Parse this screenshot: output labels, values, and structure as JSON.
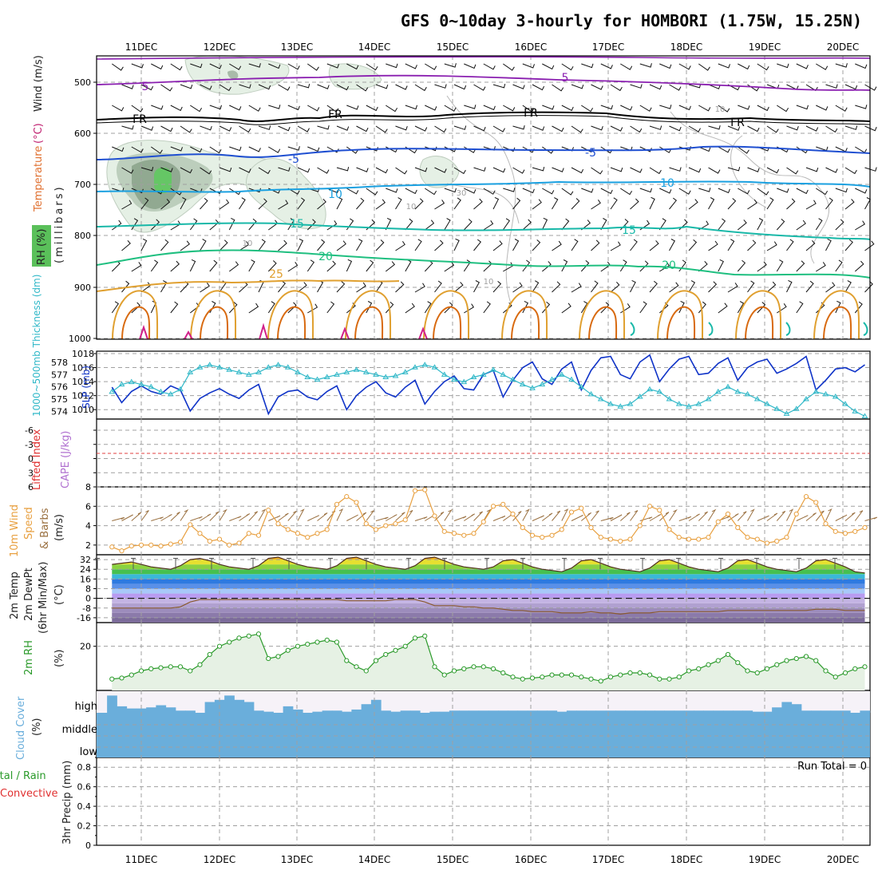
{
  "title": "GFS 0~10day 3-hourly for HOMBORI (1.75W, 15.25N)",
  "dates": [
    "11DEC",
    "12DEC",
    "13DEC",
    "14DEC",
    "15DEC",
    "16DEC",
    "17DEC",
    "18DEC",
    "19DEC",
    "20DEC"
  ],
  "colors": {
    "purple": "#8a1fb0",
    "black": "#000000",
    "blue": "#1f4fd1",
    "lightblue": "#1aa0e0",
    "teal": "#18b8a8",
    "green": "#1fbf80",
    "orange": "#e0a030",
    "darkorange": "#d86a10",
    "magenta": "#d0208a",
    "slp": "#1034c8",
    "thick": "#30b8c8",
    "wind": "#e8a040",
    "barb": "#9a7040",
    "rh": "#2a9a2a",
    "cloud": "#6aaedb"
  },
  "panels": {
    "upper": {
      "y_labels": [
        "Temperature",
        "(°C)",
        "Wind (m/s)"
      ],
      "y_label2": "(millibars)",
      "rh_label": "RH (%)",
      "ticks": [
        "500",
        "600",
        "700",
        "800",
        "900",
        "1000"
      ],
      "contour_labels": [
        {
          "text": "5",
          "color": "purple"
        },
        {
          "text": "5",
          "color": "purple"
        },
        {
          "text": "FR",
          "color": "black"
        },
        {
          "text": "FR",
          "color": "black"
        },
        {
          "text": "FR",
          "color": "black"
        },
        {
          "text": "FR",
          "color": "black"
        },
        {
          "text": "-5",
          "color": "blue"
        },
        {
          "text": "-5",
          "color": "blue"
        },
        {
          "text": "10",
          "color": "lightblue"
        },
        {
          "text": "10",
          "color": "lightblue"
        },
        {
          "text": "15",
          "color": "teal"
        },
        {
          "text": "15",
          "color": "teal"
        },
        {
          "text": "20",
          "color": "green"
        },
        {
          "text": "20",
          "color": "green"
        },
        {
          "text": "25",
          "color": "orange"
        },
        {
          "text": "30",
          "color": "gray"
        },
        {
          "text": "10",
          "color": "gray"
        },
        {
          "text": "10",
          "color": "gray"
        },
        {
          "text": "10",
          "color": "gray"
        },
        {
          "text": "10",
          "color": "gray"
        }
      ]
    },
    "slp": {
      "left_label": "1000~500mb Thickness (dm)",
      "right_label": "SLP (mb)",
      "left_ticks": [
        "578",
        "577",
        "576",
        "575",
        "574"
      ],
      "right_ticks": [
        "1018",
        "1016",
        "1014",
        "1012",
        "1010"
      ]
    },
    "stability": {
      "labels": [
        "Lifted Index",
        "CAPE (J/kg)"
      ],
      "ticks": [
        "-6",
        "-3",
        "0",
        "3",
        "6"
      ]
    },
    "wind10": {
      "labels": [
        "10m Wind",
        "Speed",
        "& Barbs",
        "(m/s)"
      ],
      "ticks": [
        "8",
        "6",
        "4",
        "2"
      ]
    },
    "temp2m": {
      "labels": [
        "2m Temp",
        "2m DewPt",
        "(6hr Min/Max)",
        "(°C)"
      ],
      "ticks": [
        "32",
        "24",
        "16",
        "8",
        "0",
        "-8",
        "-16"
      ]
    },
    "rh2m": {
      "labels": [
        "2m RH",
        "(%)"
      ],
      "ticks": [
        "20"
      ]
    },
    "cloud": {
      "labels": [
        "Cloud Cover",
        "(%)"
      ],
      "levels": [
        "high",
        "middle",
        "low"
      ]
    },
    "precip": {
      "labels": [
        "Total / Rain",
        "Convective",
        "3hr Precip (mm)"
      ],
      "ticks": [
        "0.8",
        "0.6",
        "0.4",
        "0.2",
        "0"
      ],
      "run_total": "Run Total = 0"
    }
  },
  "chart_data": [
    {
      "type": "line",
      "name": "SLP",
      "ylabel": "SLP (mb)",
      "ylim": [
        1009,
        1018
      ],
      "x": [
        "10DEC 15",
        "10DEC 18",
        "10DEC 21",
        "11DEC 00",
        "11DEC 03",
        "11DEC 06",
        "11DEC 09",
        "11DEC 12",
        "11DEC 15",
        "11DEC 18",
        "11DEC 21",
        "12DEC 00",
        "12DEC 03",
        "12DEC 06",
        "12DEC 09",
        "12DEC 12",
        "12DEC 15",
        "12DEC 18",
        "12DEC 21",
        "13DEC 00",
        "13DEC 03",
        "13DEC 06",
        "13DEC 09",
        "13DEC 12",
        "13DEC 15",
        "13DEC 18",
        "13DEC 21",
        "14DEC 00",
        "14DEC 03",
        "14DEC 06",
        "14DEC 09",
        "14DEC 12",
        "14DEC 15",
        "14DEC 18",
        "14DEC 21",
        "15DEC 00",
        "15DEC 03",
        "15DEC 06",
        "15DEC 09",
        "15DEC 12",
        "15DEC 15",
        "15DEC 18",
        "15DEC 21",
        "16DEC 00",
        "16DEC 03",
        "16DEC 06",
        "16DEC 09",
        "16DEC 12",
        "16DEC 15",
        "16DEC 18",
        "16DEC 21",
        "17DEC 00",
        "17DEC 03",
        "17DEC 06",
        "17DEC 09",
        "17DEC 12",
        "17DEC 15",
        "17DEC 18",
        "17DEC 21",
        "18DEC 00",
        "18DEC 03",
        "18DEC 06",
        "18DEC 09",
        "18DEC 12",
        "18DEC 15",
        "18DEC 18",
        "18DEC 21",
        "19DEC 00",
        "19DEC 03",
        "19DEC 06",
        "19DEC 09",
        "19DEC 12",
        "19DEC 15",
        "19DEC 18",
        "19DEC 21",
        "20DEC 00",
        "20DEC 03",
        "20DEC 06"
      ],
      "values": [
        1013.2,
        1011.0,
        1012.6,
        1013.4,
        1012.6,
        1012.2,
        1013.4,
        1012.8,
        1009.8,
        1011.6,
        1012.4,
        1013.0,
        1012.2,
        1011.6,
        1012.8,
        1013.6,
        1009.4,
        1011.8,
        1012.6,
        1012.8,
        1011.8,
        1011.4,
        1012.6,
        1013.4,
        1010.0,
        1012.0,
        1013.2,
        1014.0,
        1012.4,
        1011.8,
        1013.2,
        1014.2,
        1010.8,
        1012.6,
        1014.0,
        1014.8,
        1013.0,
        1012.8,
        1015.0,
        1015.6,
        1011.8,
        1014.2,
        1016.0,
        1016.8,
        1014.4,
        1013.6,
        1015.8,
        1016.8,
        1012.8,
        1015.6,
        1017.4,
        1017.6,
        1015.0,
        1014.4,
        1016.8,
        1017.8,
        1014.0,
        1015.8,
        1017.2,
        1017.6,
        1015.0,
        1015.2,
        1016.6,
        1017.4,
        1014.2,
        1016.0,
        1016.8,
        1017.2,
        1015.2,
        1015.8,
        1016.6,
        1017.6,
        1012.8,
        1014.2,
        1015.8,
        1016.0,
        1015.4,
        1016.4
      ]
    },
    {
      "type": "line",
      "name": "1000~500mb Thickness",
      "ylabel": "Thickness (dm)",
      "ylim": [
        573.5,
        578.4
      ],
      "values": [
        575.6,
        576.2,
        576.4,
        576.2,
        576.0,
        575.6,
        575.4,
        575.8,
        577.2,
        577.6,
        577.8,
        577.6,
        577.4,
        577.2,
        577.0,
        577.2,
        577.6,
        577.8,
        577.6,
        577.2,
        576.8,
        576.6,
        576.8,
        577.0,
        577.2,
        577.4,
        577.2,
        577.0,
        576.8,
        576.9,
        577.2,
        577.6,
        577.8,
        577.6,
        577.0,
        576.6,
        576.4,
        576.8,
        577.0,
        577.4,
        577.0,
        576.6,
        576.2,
        575.9,
        576.2,
        576.6,
        577.0,
        576.6,
        576.0,
        575.4,
        575.0,
        574.6,
        574.4,
        574.6,
        575.2,
        575.8,
        575.6,
        575.0,
        574.6,
        574.4,
        574.6,
        575.0,
        575.6,
        576.0,
        575.6,
        575.4,
        575.0,
        574.6,
        574.2,
        573.8,
        574.2,
        575.0,
        575.6,
        575.4,
        575.2,
        574.6,
        574.0,
        573.6
      ]
    },
    {
      "type": "line",
      "name": "10m Wind Speed",
      "ylabel": "(m/s)",
      "ylim": [
        1,
        8
      ],
      "values": [
        1.8,
        1.4,
        1.9,
        2.0,
        2.0,
        1.9,
        2.1,
        2.3,
        4.1,
        3.2,
        2.4,
        2.6,
        2.0,
        2.2,
        3.2,
        3.0,
        5.6,
        4.2,
        3.6,
        3.2,
        2.8,
        3.2,
        3.6,
        6.2,
        7.0,
        6.4,
        4.2,
        3.6,
        4.0,
        4.2,
        4.6,
        7.6,
        7.7,
        5.0,
        3.4,
        3.2,
        3.0,
        3.2,
        4.4,
        6.0,
        6.2,
        5.2,
        3.8,
        3.0,
        2.8,
        3.0,
        3.6,
        5.4,
        5.8,
        3.8,
        2.8,
        2.6,
        2.4,
        2.6,
        4.0,
        6.0,
        5.6,
        3.6,
        2.8,
        2.6,
        2.6,
        2.8,
        4.4,
        5.2,
        3.8,
        2.8,
        2.6,
        2.2,
        2.4,
        2.8,
        5.2,
        7.0,
        6.4,
        4.2,
        3.4,
        3.2,
        3.4,
        3.8
      ]
    },
    {
      "type": "area",
      "name": "2m Temp",
      "ylabel": "(°C)",
      "ylim": [
        -20,
        36
      ],
      "values": [
        28,
        29,
        30,
        28,
        26,
        25,
        24,
        27,
        32,
        33,
        31,
        28,
        26,
        25,
        24,
        27,
        33,
        34,
        31,
        28,
        26,
        25,
        24,
        27,
        33,
        34,
        31,
        28,
        26,
        25,
        24,
        27,
        33,
        34,
        31,
        28,
        26,
        25,
        24,
        26,
        31,
        32,
        29,
        26,
        24,
        23,
        22,
        25,
        31,
        32,
        29,
        26,
        24,
        23,
        22,
        25,
        31,
        32,
        29,
        26,
        24,
        23,
        22,
        25,
        31,
        32,
        29,
        26,
        24,
        23,
        22,
        25,
        31,
        32,
        29,
        26,
        22,
        21
      ]
    },
    {
      "type": "line",
      "name": "2m DewPt",
      "ylabel": "(°C)",
      "ylim": [
        -20,
        36
      ],
      "values": [
        -8,
        -8,
        -8,
        -8,
        -8,
        -8,
        -8,
        -7,
        -3,
        -1,
        -1,
        -1,
        -1,
        -1,
        -1,
        -1,
        -1,
        -1,
        -1,
        -1,
        -1,
        -1,
        -1,
        -1,
        -2,
        -2,
        -2,
        -2,
        -2,
        -1,
        -1,
        -1,
        -3,
        -6,
        -6,
        -6,
        -7,
        -7,
        -8,
        -8,
        -9,
        -10,
        -10,
        -11,
        -11,
        -11,
        -12,
        -12,
        -12,
        -11,
        -12,
        -12,
        -13,
        -12,
        -12,
        -12,
        -11,
        -11,
        -11,
        -11,
        -11,
        -11,
        -11,
        -10,
        -10,
        -10,
        -10,
        -10,
        -10,
        -10,
        -10,
        -10,
        -9,
        -9,
        -9,
        -10,
        -10,
        -10
      ]
    },
    {
      "type": "area",
      "name": "2m RH",
      "ylabel": "(%)",
      "ylim": [
        0,
        30
      ],
      "values": [
        4,
        4.5,
        6,
        8,
        9,
        9.5,
        10,
        10,
        8,
        11,
        16,
        20,
        22,
        24,
        25,
        26,
        14,
        15,
        18,
        20,
        21,
        22,
        23,
        22,
        13,
        10,
        8,
        13,
        16,
        18,
        20,
        24,
        25,
        10,
        6,
        8,
        9,
        10,
        10,
        9,
        7,
        5,
        4,
        4.5,
        5,
        6,
        6,
        6,
        5,
        4,
        3,
        5,
        6,
        7,
        7,
        6,
        4,
        4,
        5,
        8,
        9,
        11,
        13,
        16,
        12,
        8,
        7,
        9,
        11,
        13,
        14,
        15,
        13,
        8,
        5,
        7,
        9,
        10
      ]
    },
    {
      "type": "area",
      "name": "Cloud Cover high",
      "ylabel": "(%)",
      "ylim": [
        0,
        100
      ],
      "values": [
        80,
        30,
        20,
        20,
        25,
        35,
        25,
        10,
        10,
        0,
        50,
        60,
        80,
        60,
        50,
        10,
        5,
        0,
        30,
        15,
        0,
        5,
        10,
        10,
        5,
        15,
        40,
        60,
        10,
        5,
        10,
        10,
        0,
        5,
        5,
        10,
        10,
        10,
        10,
        10,
        10,
        10,
        10,
        10,
        10,
        10,
        5,
        10,
        10,
        10,
        10,
        10,
        10,
        10,
        10,
        10,
        10,
        10,
        10,
        10,
        10,
        10,
        10,
        10,
        10,
        10,
        5,
        5,
        25,
        50,
        40,
        10,
        10,
        10,
        10,
        10,
        0,
        10
      ]
    },
    {
      "type": "bar",
      "name": "3hr Precip",
      "ylabel": "3hr Precip (mm)",
      "ylim": [
        0,
        0.9
      ],
      "values": [
        0,
        0,
        0,
        0,
        0,
        0,
        0,
        0,
        0,
        0,
        0,
        0,
        0,
        0,
        0,
        0,
        0,
        0,
        0,
        0,
        0,
        0,
        0,
        0,
        0,
        0,
        0,
        0,
        0,
        0,
        0,
        0,
        0,
        0,
        0,
        0,
        0,
        0,
        0,
        0,
        0,
        0,
        0,
        0,
        0,
        0,
        0,
        0,
        0,
        0,
        0,
        0,
        0,
        0,
        0,
        0,
        0,
        0,
        0,
        0,
        0,
        0,
        0,
        0,
        0,
        0,
        0,
        0,
        0,
        0,
        0,
        0,
        0,
        0,
        0,
        0,
        0,
        0
      ]
    }
  ]
}
